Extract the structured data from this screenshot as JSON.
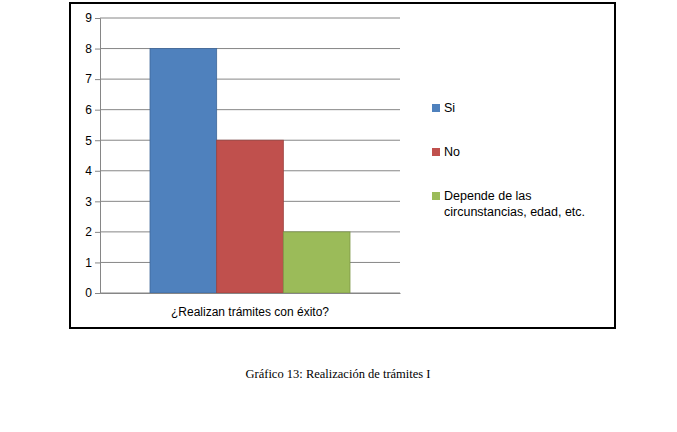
{
  "chart_data": {
    "type": "bar",
    "title": "Gráfico 13: Realización de trámites I",
    "categories": [
      "¿Realizan trámites con éxito?"
    ],
    "series": [
      {
        "name": "Si",
        "color": "#4f81bd",
        "values": [
          8
        ]
      },
      {
        "name": "No",
        "color": "#c0504d",
        "values": [
          5
        ]
      },
      {
        "name": "Depende de las circunstancias, edad, etc.",
        "color": "#9bbb59",
        "values": [
          2
        ]
      }
    ],
    "ylim": [
      0,
      9
    ],
    "yticks": [
      0,
      1,
      2,
      3,
      4,
      5,
      6,
      7,
      8,
      9
    ],
    "grid": true,
    "legend": "right"
  }
}
